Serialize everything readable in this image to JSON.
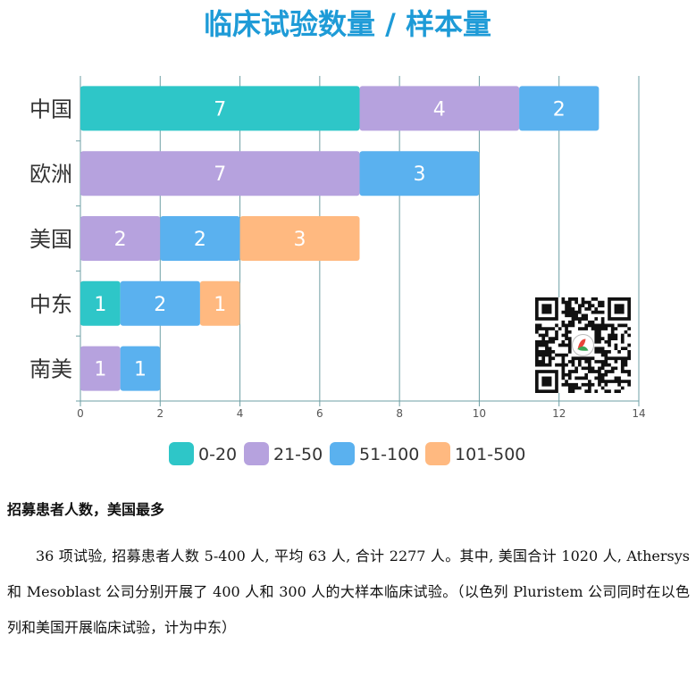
{
  "chart_data": {
    "type": "bar",
    "orientation": "horizontal",
    "stacked": true,
    "title": "临床试验数量 / 样本量",
    "categories": [
      "中国",
      "欧洲",
      "美国",
      "中东",
      "南美"
    ],
    "series": [
      {
        "name": "0-20",
        "color": "#2ec6c8",
        "values": [
          7,
          0,
          0,
          1,
          0
        ]
      },
      {
        "name": "21-50",
        "color": "#b6a2de",
        "values": [
          4,
          7,
          2,
          0,
          1
        ]
      },
      {
        "name": "51-100",
        "color": "#5ab1ef",
        "values": [
          2,
          3,
          2,
          2,
          1
        ]
      },
      {
        "name": "101-500",
        "color": "#ffb980",
        "values": [
          0,
          0,
          3,
          1,
          0
        ]
      }
    ],
    "xlim": [
      0,
      14
    ],
    "xticks": [
      "0",
      "2",
      "4",
      "6",
      "8",
      "10",
      "12",
      "14"
    ],
    "grid": true,
    "legend_position": "bottom"
  },
  "qr_code": {
    "icon": "qr-code-icon"
  },
  "text": {
    "heading": "招募患者人数，美国最多",
    "paragraph": "36 项试验, 招募患者人数 5-400 人, 平均 63 人, 合计 2277 人。其中, 美国合计 1020 人, Athersys 和 Mesoblast 公司分别开展了 400 人和 300 人的大样本临床试验。（以色列 Pluristem 公司同时在以色列和美国开展临床试验，计为中东）"
  },
  "colors": {
    "title": "#1e9bd7",
    "axis": "#6e9fa4",
    "grid": "#6e9fa4"
  }
}
